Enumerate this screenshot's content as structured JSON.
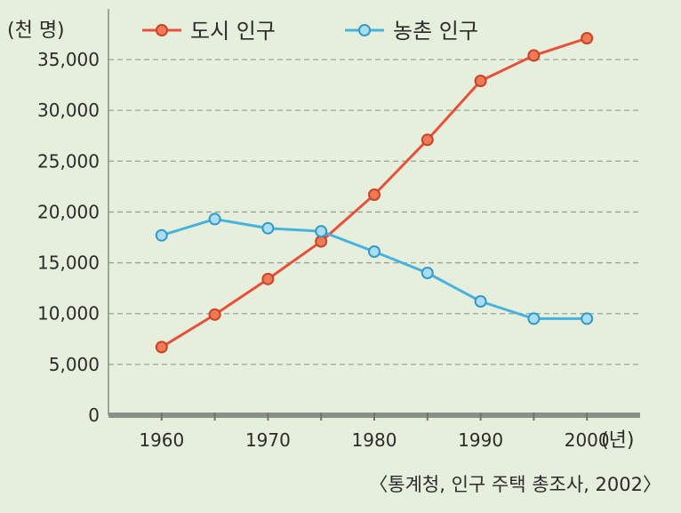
{
  "chart_data": {
    "type": "line",
    "y_unit_label": "(천 명)",
    "x_unit_label": "(년)",
    "source": "〈통계청, 인구 주택 총조사, 2002〉",
    "x": [
      1960,
      1965,
      1970,
      1975,
      1980,
      1985,
      1990,
      1995,
      2000
    ],
    "x_ticks": [
      "1960",
      "1970",
      "1980",
      "1990",
      "2000"
    ],
    "y_ticks": [
      "0",
      "5,000",
      "10,000",
      "15,000",
      "20,000",
      "25,000",
      "30,000",
      "35,000"
    ],
    "ylim": [
      0,
      35000
    ],
    "xlim": [
      1955,
      2005
    ],
    "grid": true,
    "legend_position": "top",
    "series": [
      {
        "name": "도시 인구",
        "color": "#e8503a",
        "values": [
          6700,
          9900,
          13400,
          17100,
          21700,
          27100,
          32900,
          35400,
          37100
        ]
      },
      {
        "name": "농촌 인구",
        "color": "#45b3de",
        "values": [
          17700,
          19300,
          18400,
          18100,
          16100,
          14000,
          11200,
          9500,
          9500
        ]
      }
    ]
  }
}
